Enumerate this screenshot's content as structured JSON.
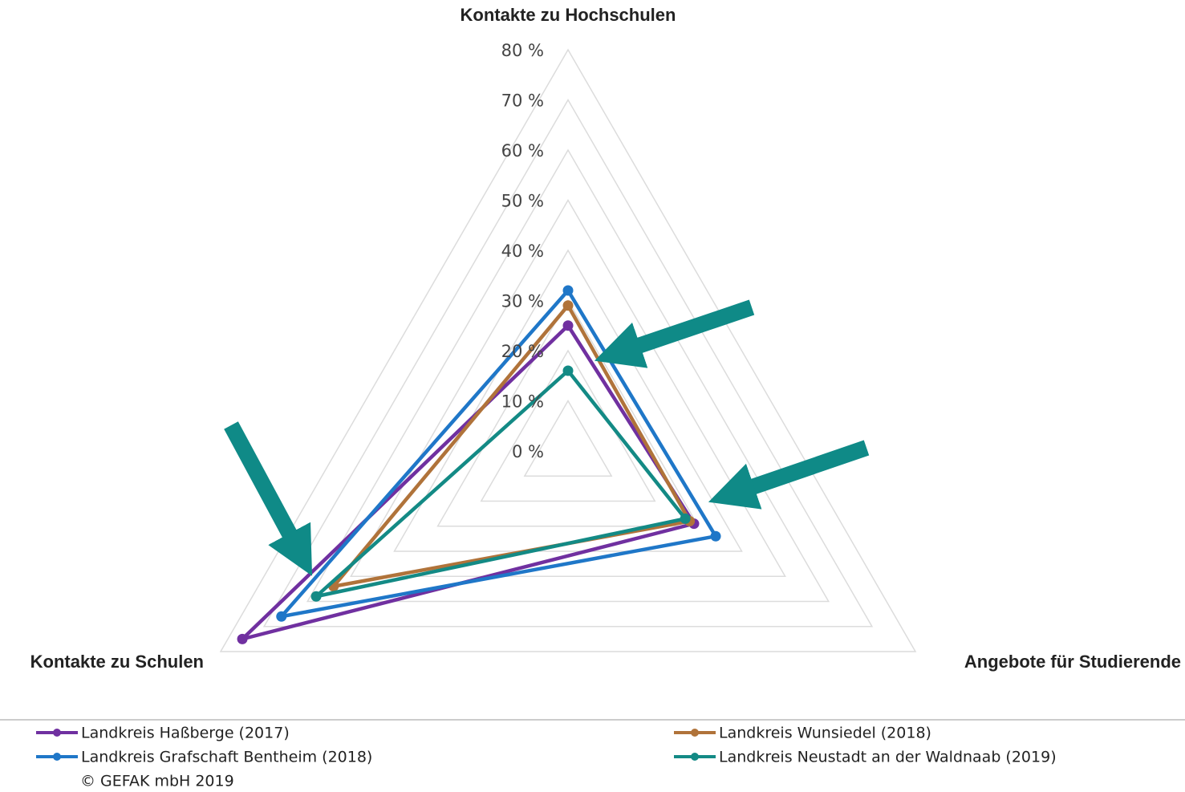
{
  "chart_data": {
    "type": "radar",
    "categories": [
      "Kontakte zu Hochschulen",
      "Angebote für Studierende",
      "Kontakte zu Schulen"
    ],
    "series": [
      {
        "name": "Landkreis Haßberge (2017)",
        "color": "#7030a0",
        "values": [
          25,
          29,
          75
        ]
      },
      {
        "name": "Landkreis Wunsiedel (2018)",
        "color": "#b0733a",
        "values": [
          29,
          28,
          54
        ]
      },
      {
        "name": "Landkreis Grafschaft Bentheim (2018)",
        "color": "#1f77c8",
        "values": [
          32,
          34,
          66
        ]
      },
      {
        "name": "Landkreis Neustadt an der Waldnaab (2019)",
        "color": "#138a85",
        "values": [
          16,
          27,
          58
        ]
      }
    ],
    "ylim": [
      0,
      80
    ],
    "yticks": [
      {
        "value": 0,
        "label": "0 %"
      },
      {
        "value": 10,
        "label": "10 %"
      },
      {
        "value": 20,
        "label": "20 %"
      },
      {
        "value": 30,
        "label": "30 %"
      },
      {
        "value": 40,
        "label": "40 %"
      },
      {
        "value": 50,
        "label": "50 %"
      },
      {
        "value": 60,
        "label": "60 %"
      },
      {
        "value": 70,
        "label": "70 %"
      },
      {
        "value": 80,
        "label": "80 %"
      }
    ],
    "grid": true,
    "legend": "bottom",
    "source": "© GEFAK mbH 2019"
  }
}
